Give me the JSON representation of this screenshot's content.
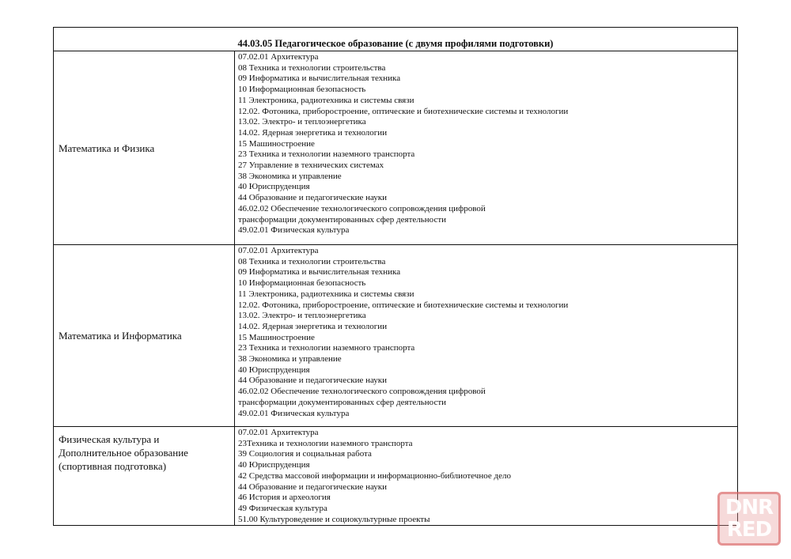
{
  "title": "44.03.05 Педагогическое образование (с двумя профилями подготовки)",
  "rows": [
    {
      "profile": "Математика и Физика",
      "items": [
        "07.02.01 Архитектура",
        "08 Техника и технологии строительства",
        "09 Информатика и вычислительная техника",
        "10 Информационная безопасность",
        "11 Электроника, радиотехника и системы связи",
        "12.02. Фотоника, приборостроение, оптические и биотехнические системы и технологии",
        "13.02. Электро- и теплоэнергетика",
        "14.02. Ядерная энергетика и технологии",
        "15 Машиностроение",
        "23 Техника и технологии наземного транспорта",
        "27 Управление в технических системах",
        "38 Экономика и управление",
        "40 Юриспруденция",
        "44 Образование и педагогические науки",
        "46.02.02 Обеспечение технологического сопровождения цифровой",
        "трансформации документированных сфер деятельности",
        "49.02.01 Физическая культура"
      ]
    },
    {
      "profile": "Математика и Информатика",
      "items": [
        "07.02.01 Архитектура",
        "08 Техника и технологии строительства",
        "09 Информатика и вычислительная техника",
        "10 Информационная безопасность",
        "11 Электроника, радиотехника и системы связи",
        "12.02. Фотоника, приборостроение, оптические и биотехнические системы и технологии",
        "13.02. Электро- и теплоэнергетика",
        "14.02. Ядерная энергетика и технологии",
        "15 Машиностроение",
        "23 Техника и технологии наземного транспорта",
        "38 Экономика и управление",
        "40 Юриспруденция",
        "44 Образование и педагогические науки",
        "46.02.02 Обеспечение технологического сопровождения цифровой",
        "трансформации документированных сфер деятельности",
        "49.02.01 Физическая культура"
      ]
    },
    {
      "profile": "Физическая культура и Дополнительное образование (спортивная подготовка)",
      "items": [
        "07.02.01 Архитектура",
        "23Техника и технологии наземного транспорта",
        "39 Социология и социальная работа",
        "40 Юриспруденция",
        "42 Средства массовой информации и информационно-библиотечное дело",
        "44 Образование и педагогические науки",
        "46 История и археология",
        "49 Физическая культура",
        "51.00 Культуроведение и социокультурные проекты"
      ]
    }
  ],
  "watermark": {
    "line1": "DNR",
    "line2": "RED",
    "color": "#d75a5a"
  }
}
